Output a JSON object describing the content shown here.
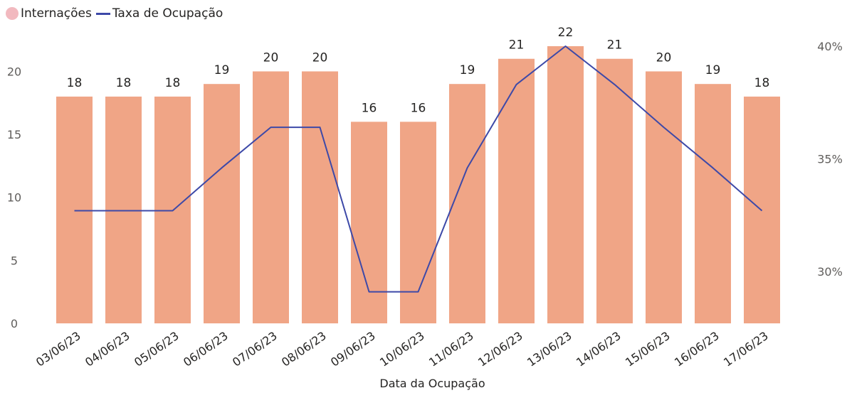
{
  "legend": {
    "bar_label": "Internações",
    "line_label": "Taxa de Ocupação"
  },
  "colors": {
    "bars": "#F0A586",
    "line": "#3D49A8",
    "legend_bar_dot": "#F2B9BF",
    "axis_text": "#605E5C",
    "label_text": "#252423"
  },
  "chart_data": {
    "type": "bar",
    "categories": [
      "03/06/23",
      "04/06/23",
      "05/06/23",
      "06/06/23",
      "07/06/23",
      "08/06/23",
      "09/06/23",
      "10/06/23",
      "11/06/23",
      "12/06/23",
      "13/06/23",
      "14/06/23",
      "15/06/23",
      "16/06/23",
      "17/06/23"
    ],
    "series": [
      {
        "name": "Internações",
        "type": "bar",
        "axis": "left",
        "values": [
          18,
          18,
          18,
          19,
          20,
          20,
          16,
          16,
          19,
          21,
          22,
          21,
          20,
          19,
          18
        ]
      },
      {
        "name": "Taxa de Ocupação",
        "type": "line",
        "axis": "right",
        "values": [
          32.7,
          32.7,
          32.7,
          34.6,
          36.4,
          36.4,
          29.1,
          29.1,
          34.6,
          38.3,
          40.0,
          38.3,
          36.4,
          34.6,
          32.7
        ]
      }
    ],
    "xlabel": "Data da Ocupação",
    "ylabel": "",
    "ylim": [
      0,
      22
    ],
    "yticks": [
      0,
      5,
      10,
      15,
      20
    ],
    "y2lim": [
      27.7,
      40.0
    ],
    "y2ticks": [
      30,
      35,
      40
    ],
    "y2tick_labels": [
      "30%",
      "35%",
      "40%"
    ],
    "data_labels": true,
    "grid": false,
    "legend_position": "top-left"
  }
}
